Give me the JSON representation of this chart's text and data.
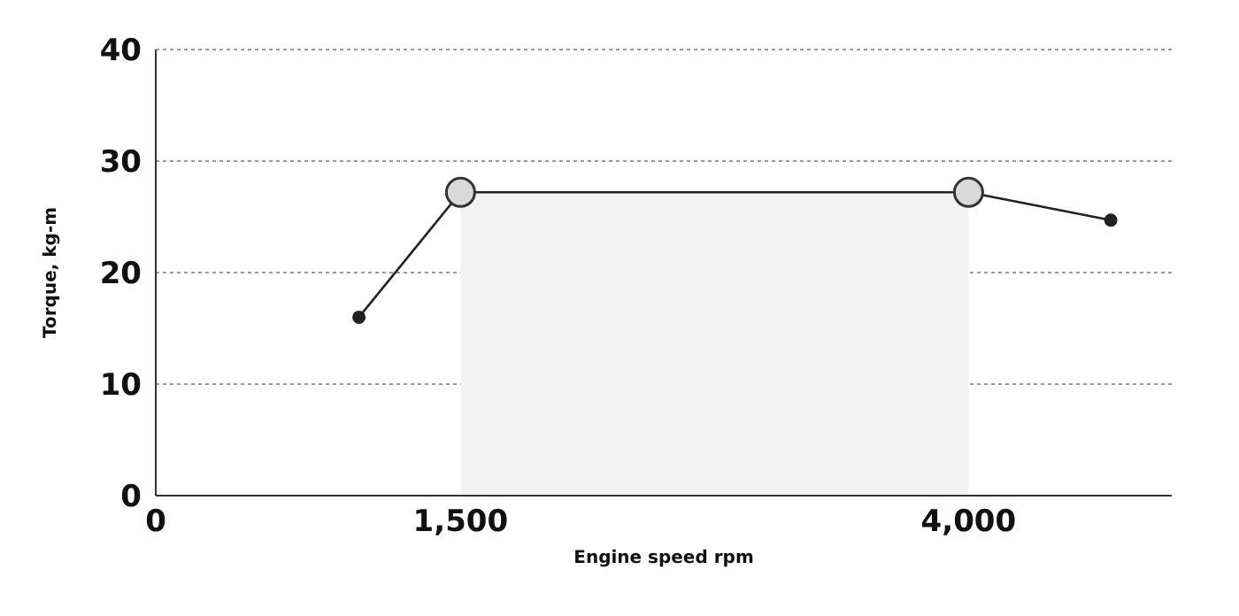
{
  "chart_data": {
    "type": "line",
    "xlabel": "Engine speed rpm",
    "ylabel": "Torque, kg-m",
    "xlim": [
      0,
      5000
    ],
    "xticks": [
      0,
      {
        "value": 1500,
        "label": "1,500"
      },
      {
        "value": 4000,
        "label": "4,000"
      }
    ],
    "ylim": [
      0,
      40
    ],
    "yticks": [
      0,
      10,
      20,
      30,
      40
    ],
    "grid": "y",
    "series": [
      {
        "type": "area",
        "x": [
          1500,
          4000
        ],
        "values": [
          27.2,
          27.2
        ],
        "color": "#f2f2f2"
      },
      {
        "x": [
          1000,
          1500,
          4000,
          4700
        ],
        "values": [
          16,
          27.2,
          27.2,
          24.7
        ],
        "color": "#222222",
        "marker": "circle"
      },
      {
        "type": "scatter",
        "x": [
          1500,
          4000
        ],
        "values": [
          27.2,
          27.2
        ],
        "color": "#d9d9d9",
        "marker": "circle"
      }
    ]
  }
}
